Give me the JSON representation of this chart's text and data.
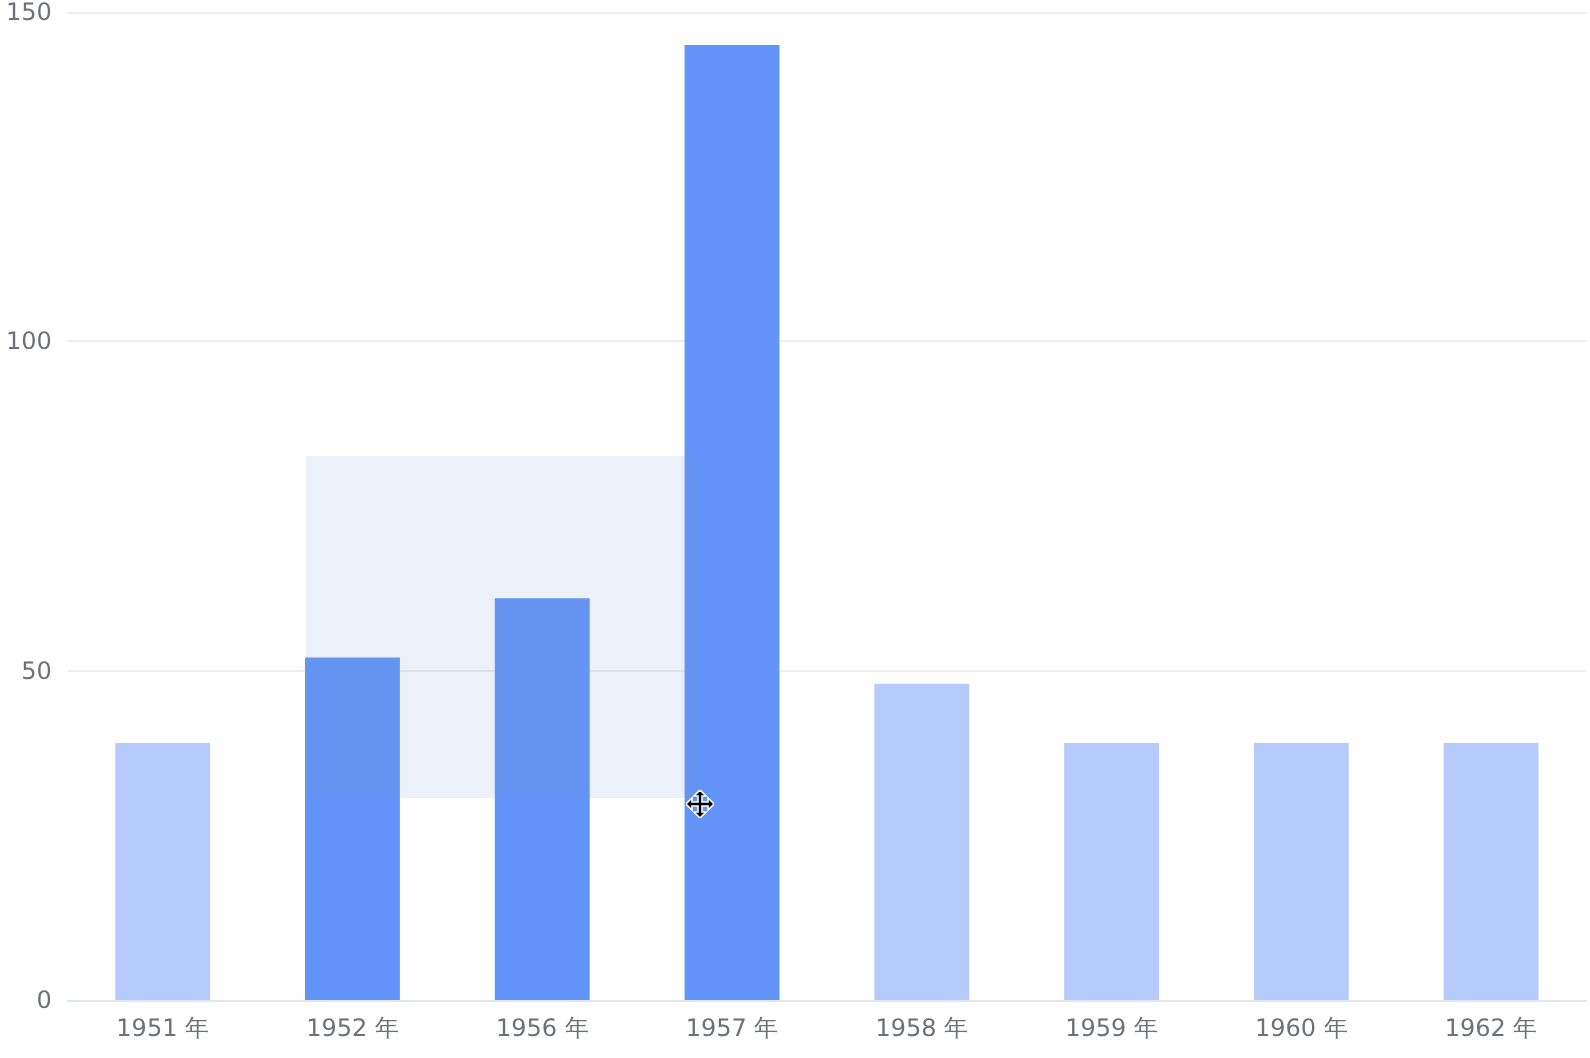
{
  "chart_data": {
    "type": "bar",
    "categories": [
      "1951 年",
      "1952 年",
      "1956 年",
      "1957 年",
      "1958 年",
      "1959 年",
      "1960 年",
      "1962 年"
    ],
    "values": [
      39,
      52,
      61,
      145,
      48,
      39,
      39,
      39
    ],
    "colors": [
      "#b6cbfb",
      "#6394f9",
      "#6394f9",
      "#6394f9",
      "#b6cbfb",
      "#b6cbfb",
      "#b6cbfb",
      "#b6cbfb"
    ],
    "ylim": [
      0,
      150
    ],
    "yticks": [
      0,
      50,
      100,
      150
    ],
    "grid": "y"
  }
}
